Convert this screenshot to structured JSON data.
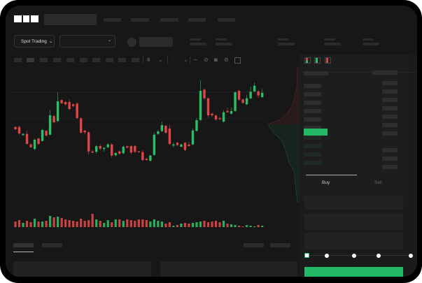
{
  "brand": {
    "logo_text": "OKX"
  },
  "toolbar": {
    "market_select_label": "Spot Trading",
    "chevron": "⌄"
  },
  "trade_form": {
    "tabs": [
      {
        "label": "Buy",
        "active": true
      },
      {
        "label": "Sell",
        "active": false
      }
    ],
    "leverage_slider_value": 0,
    "slider_stops": 5
  },
  "colors": {
    "up": "#2ebd67",
    "down": "#e04646",
    "accent": "#22b866",
    "background": "#171717"
  },
  "icons": [
    "orderbook-both-icon",
    "orderbook-bids-icon",
    "orderbook-asks-icon",
    "line-tool-icon",
    "ruler-icon",
    "camera-icon",
    "settings-icon",
    "fullscreen-icon"
  ],
  "chart_data": {
    "type": "candlestick",
    "candles": [
      [
        58.3,
        55,
        59.5,
        53.8
      ],
      [
        58.3,
        49,
        60,
        47.5
      ],
      [
        46.7,
        48.3,
        49.5,
        45.5
      ],
      [
        48.3,
        34,
        53.3,
        33.3
      ],
      [
        33.3,
        29.3,
        34.5,
        28
      ],
      [
        26.7,
        40,
        41.5,
        25
      ],
      [
        41.7,
        34,
        43,
        32.5
      ],
      [
        38.3,
        54,
        55.5,
        37
      ],
      [
        52.7,
        46,
        54,
        44.5
      ],
      [
        47.3,
        75,
        82.7,
        46
      ],
      [
        74,
        65,
        76,
        63.5
      ],
      [
        66.7,
        95,
        107.7,
        65.5
      ],
      [
        96.7,
        92.3,
        98,
        91
      ],
      [
        94,
        90.7,
        95.5,
        89
      ],
      [
        94,
        84,
        98,
        82.5
      ],
      [
        90.7,
        88.3,
        92,
        87
      ],
      [
        91.7,
        71,
        94,
        70
      ],
      [
        70.7,
        50,
        72,
        49
      ],
      [
        53,
        50.7,
        54.5,
        47.5
      ],
      [
        50.7,
        23.3,
        52,
        19
      ],
      [
        23.3,
        21.7,
        25,
        20.5
      ],
      [
        22.7,
        30.7,
        32,
        20
      ],
      [
        31,
        27.3,
        33.5,
        25
      ],
      [
        26.7,
        28.3,
        30,
        22.7
      ],
      [
        29.3,
        33.3,
        35,
        28
      ],
      [
        33.3,
        17.3,
        35,
        14.5
      ],
      [
        17.7,
        21,
        22.5,
        16
      ],
      [
        23.3,
        20,
        25,
        18.5
      ],
      [
        20.7,
        30,
        32,
        19.5
      ],
      [
        30.7,
        28.7,
        32,
        27.5
      ],
      [
        31,
        21.7,
        32.5,
        19
      ],
      [
        31,
        22.7,
        32.5,
        21
      ],
      [
        23.3,
        22.7,
        24,
        22
      ],
      [
        22.3,
        11,
        25,
        9.5
      ],
      [
        12.7,
        11,
        14,
        10
      ],
      [
        10,
        17.3,
        18.5,
        8.5
      ],
      [
        18.3,
        47.3,
        50,
        17
      ],
      [
        48.3,
        52,
        54,
        47
      ],
      [
        52.3,
        61,
        65.7,
        51
      ],
      [
        60,
        50,
        61.5,
        48.5
      ],
      [
        56,
        34,
        61,
        32
      ],
      [
        31.7,
        33.3,
        36,
        29
      ],
      [
        35.7,
        32.3,
        37,
        31
      ],
      [
        30,
        33.3,
        34.5,
        29
      ],
      [
        35.7,
        25.3,
        37,
        24
      ],
      [
        33,
        31,
        37,
        30
      ],
      [
        33.3,
        53.3,
        56.5,
        32
      ],
      [
        52.7,
        68,
        71,
        51.5
      ],
      [
        68.3,
        110,
        125,
        67
      ],
      [
        111.7,
        99.3,
        113,
        97
      ],
      [
        99.3,
        75,
        100.5,
        71
      ],
      [
        77.3,
        75,
        79,
        72.5
      ],
      [
        74.7,
        69,
        76,
        67
      ],
      [
        70.7,
        69.3,
        73,
        68.5
      ],
      [
        66,
        79.3,
        82.5,
        64.5
      ],
      [
        81.3,
        79.3,
        86,
        78.5
      ],
      [
        77.3,
        81,
        86,
        76
      ],
      [
        81.3,
        108,
        109.5,
        80
      ],
      [
        110,
        97.3,
        111.5,
        96
      ],
      [
        97.7,
        92.7,
        99,
        91.5
      ],
      [
        90.7,
        99.3,
        104.5,
        89.5
      ],
      [
        99.3,
        108.7,
        116,
        98
      ],
      [
        109.3,
        117.3,
        121.7,
        108
      ],
      [
        109.3,
        103.3,
        111,
        100
      ],
      [
        101,
        107,
        112.7,
        100
      ]
    ],
    "candle_fields": [
      "open",
      "close",
      "high",
      "low"
    ],
    "volume": [
      8,
      10,
      6,
      9,
      7,
      12,
      8,
      8,
      9,
      16,
      14,
      15,
      13,
      11,
      10,
      9,
      8,
      12,
      9,
      10,
      19,
      11,
      9,
      6,
      10,
      7,
      11,
      11,
      9,
      11,
      10,
      9,
      11,
      11,
      10,
      8,
      11,
      9,
      8,
      5,
      7,
      2,
      3,
      5,
      6,
      5,
      6,
      7,
      8,
      9,
      7,
      8,
      9,
      7,
      9,
      5,
      4,
      3,
      2,
      1,
      3,
      2,
      1,
      3,
      2
    ]
  }
}
